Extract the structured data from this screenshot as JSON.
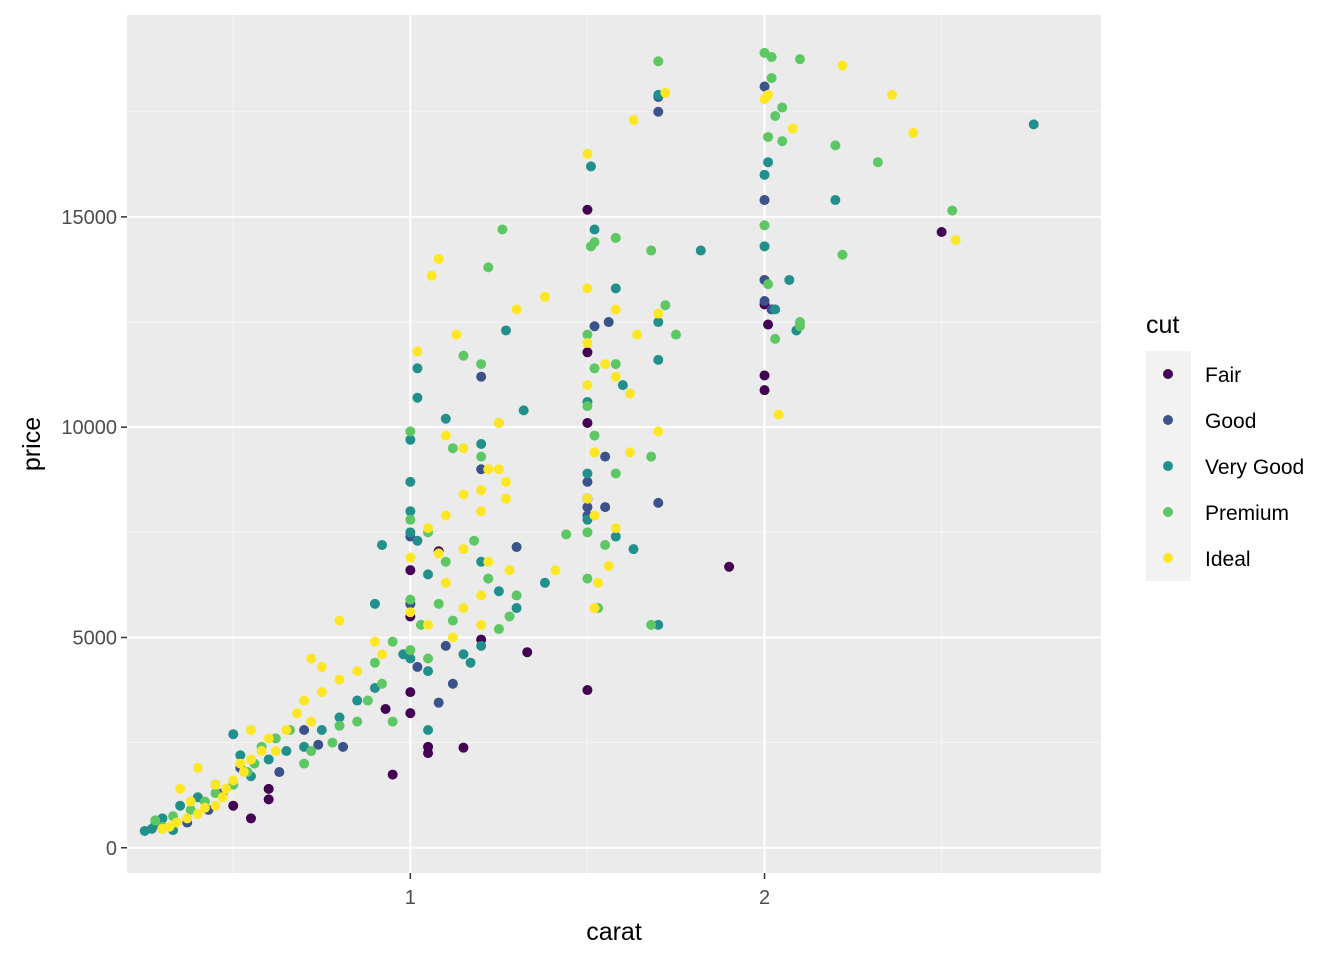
{
  "chart_data": {
    "type": "scatter",
    "title": "",
    "xlabel": "carat",
    "ylabel": "price",
    "xlim": [
      0.2,
      2.95
    ],
    "ylim": [
      -600,
      19800
    ],
    "x_ticks": [
      {
        "value": 1,
        "label": "1"
      },
      {
        "value": 2,
        "label": "2"
      }
    ],
    "y_ticks": [
      {
        "value": 0,
        "label": "0"
      },
      {
        "value": 5000,
        "label": "5000"
      },
      {
        "value": 10000,
        "label": "10000"
      },
      {
        "value": 15000,
        "label": "15000"
      }
    ],
    "grid": true,
    "background": "#EBEBEB",
    "legend": {
      "title": "cut",
      "position": "right",
      "entries": [
        {
          "name": "Fair",
          "color": "#440154"
        },
        {
          "name": "Good",
          "color": "#3B528B"
        },
        {
          "name": "Very Good",
          "color": "#21908C"
        },
        {
          "name": "Premium",
          "color": "#5DC863"
        },
        {
          "name": "Ideal",
          "color": "#FDE725"
        }
      ]
    },
    "series": [
      {
        "name": "Fair",
        "color": "#440154",
        "points": [
          [
            1.5,
            15170
          ],
          [
            1.5,
            11780
          ],
          [
            1.5,
            10100
          ],
          [
            1.5,
            8300
          ],
          [
            1.5,
            3750
          ],
          [
            2.0,
            12920
          ],
          [
            2.01,
            12440
          ],
          [
            2.0,
            11230
          ],
          [
            2.0,
            10880
          ],
          [
            2.5,
            14640
          ],
          [
            1.9,
            6680
          ],
          [
            1.33,
            4650
          ],
          [
            1.15,
            2380
          ],
          [
            1.05,
            2400
          ],
          [
            1.05,
            2250
          ],
          [
            0.95,
            1740
          ],
          [
            0.93,
            3300
          ],
          [
            1.0,
            3200
          ],
          [
            1.0,
            3700
          ],
          [
            1.0,
            5500
          ],
          [
            1.0,
            6600
          ],
          [
            1.08,
            7050
          ],
          [
            1.2,
            4950
          ],
          [
            0.6,
            1400
          ],
          [
            0.6,
            1150
          ],
          [
            0.5,
            1000
          ],
          [
            0.55,
            700
          ]
        ]
      },
      {
        "name": "Good",
        "color": "#3B528B",
        "points": [
          [
            1.7,
            17500
          ],
          [
            1.7,
            17850
          ],
          [
            2.0,
            18100
          ],
          [
            2.0,
            15400
          ],
          [
            2.0,
            13500
          ],
          [
            2.0,
            13000
          ],
          [
            2.02,
            12800
          ],
          [
            1.5,
            8100
          ],
          [
            1.5,
            7900
          ],
          [
            1.5,
            8700
          ],
          [
            1.55,
            8100
          ],
          [
            1.55,
            9300
          ],
          [
            1.52,
            12400
          ],
          [
            1.56,
            12500
          ],
          [
            1.7,
            8200
          ],
          [
            1.2,
            11200
          ],
          [
            1.2,
            9000
          ],
          [
            1.3,
            7150
          ],
          [
            1.0,
            7400
          ],
          [
            1.0,
            5800
          ],
          [
            1.02,
            4300
          ],
          [
            1.1,
            4800
          ],
          [
            1.12,
            3900
          ],
          [
            1.08,
            3450
          ],
          [
            0.81,
            2400
          ],
          [
            0.74,
            2450
          ],
          [
            0.7,
            2800
          ],
          [
            0.63,
            1800
          ],
          [
            0.52,
            1900
          ],
          [
            0.47,
            1300
          ],
          [
            0.43,
            900
          ],
          [
            0.37,
            600
          ]
        ]
      },
      {
        "name": "Very Good",
        "color": "#21908C",
        "points": [
          [
            1.7,
            17900
          ],
          [
            2.76,
            17200
          ],
          [
            2.0,
            16000
          ],
          [
            2.01,
            16300
          ],
          [
            2.0,
            14300
          ],
          [
            2.07,
            13500
          ],
          [
            2.03,
            12800
          ],
          [
            2.09,
            12300
          ],
          [
            2.2,
            15400
          ],
          [
            1.82,
            14200
          ],
          [
            1.51,
            16200
          ],
          [
            1.52,
            14700
          ],
          [
            1.58,
            13300
          ],
          [
            1.7,
            12500
          ],
          [
            1.7,
            11600
          ],
          [
            1.6,
            11000
          ],
          [
            1.5,
            10600
          ],
          [
            1.5,
            8900
          ],
          [
            1.5,
            7800
          ],
          [
            1.58,
            7400
          ],
          [
            1.63,
            7100
          ],
          [
            1.7,
            5300
          ],
          [
            1.02,
            11400
          ],
          [
            1.02,
            10700
          ],
          [
            1.0,
            9700
          ],
          [
            1.1,
            10200
          ],
          [
            1.2,
            9600
          ],
          [
            1.27,
            12300
          ],
          [
            1.32,
            10400
          ],
          [
            1.0,
            8700
          ],
          [
            1.0,
            8000
          ],
          [
            1.0,
            7500
          ],
          [
            1.02,
            7300
          ],
          [
            1.05,
            6500
          ],
          [
            1.2,
            6800
          ],
          [
            1.25,
            6100
          ],
          [
            1.3,
            5700
          ],
          [
            1.38,
            6300
          ],
          [
            1.2,
            4800
          ],
          [
            1.0,
            4500
          ],
          [
            0.92,
            7200
          ],
          [
            0.9,
            5800
          ],
          [
            0.98,
            4600
          ],
          [
            1.05,
            4200
          ],
          [
            1.15,
            4600
          ],
          [
            1.17,
            4400
          ],
          [
            1.05,
            2800
          ],
          [
            0.9,
            3800
          ],
          [
            0.85,
            3500
          ],
          [
            0.8,
            3100
          ],
          [
            0.75,
            2800
          ],
          [
            0.7,
            2400
          ],
          [
            0.65,
            2300
          ],
          [
            0.6,
            2100
          ],
          [
            0.55,
            1700
          ],
          [
            0.52,
            2200
          ],
          [
            0.5,
            2700
          ],
          [
            0.45,
            1500
          ],
          [
            0.4,
            1200
          ],
          [
            0.35,
            1000
          ],
          [
            0.3,
            700
          ],
          [
            0.28,
            550
          ],
          [
            0.25,
            400
          ],
          [
            0.27,
            450
          ],
          [
            0.33,
            420
          ]
        ]
      },
      {
        "name": "Premium",
        "color": "#5DC863",
        "points": [
          [
            1.7,
            18700
          ],
          [
            2.0,
            18900
          ],
          [
            2.02,
            18800
          ],
          [
            2.1,
            18750
          ],
          [
            2.02,
            18300
          ],
          [
            2.05,
            17600
          ],
          [
            2.03,
            17400
          ],
          [
            2.01,
            16900
          ],
          [
            2.05,
            16800
          ],
          [
            2.2,
            16700
          ],
          [
            2.32,
            16300
          ],
          [
            2.53,
            15150
          ],
          [
            2.0,
            14800
          ],
          [
            2.22,
            14100
          ],
          [
            2.01,
            13400
          ],
          [
            2.03,
            12100
          ],
          [
            2.1,
            12500
          ],
          [
            2.1,
            12400
          ],
          [
            1.51,
            14300
          ],
          [
            1.52,
            14400
          ],
          [
            1.58,
            14500
          ],
          [
            1.68,
            14200
          ],
          [
            1.72,
            12900
          ],
          [
            1.75,
            12200
          ],
          [
            1.5,
            12200
          ],
          [
            1.52,
            11400
          ],
          [
            1.58,
            11500
          ],
          [
            1.5,
            10500
          ],
          [
            1.52,
            9800
          ],
          [
            1.58,
            8900
          ],
          [
            1.68,
            9300
          ],
          [
            1.5,
            7500
          ],
          [
            1.55,
            7200
          ],
          [
            1.53,
            5700
          ],
          [
            1.68,
            5300
          ],
          [
            1.44,
            7450
          ],
          [
            1.5,
            6400
          ],
          [
            1.0,
            9900
          ],
          [
            1.15,
            11700
          ],
          [
            1.26,
            14700
          ],
          [
            1.22,
            13800
          ],
          [
            1.2,
            11500
          ],
          [
            1.12,
            9500
          ],
          [
            1.2,
            9300
          ],
          [
            1.25,
            10100
          ],
          [
            1.0,
            7800
          ],
          [
            1.05,
            7500
          ],
          [
            1.18,
            7300
          ],
          [
            1.1,
            6800
          ],
          [
            1.22,
            6400
          ],
          [
            1.28,
            5500
          ],
          [
            1.3,
            6000
          ],
          [
            1.0,
            5900
          ],
          [
            1.03,
            5300
          ],
          [
            1.08,
            5800
          ],
          [
            1.12,
            5400
          ],
          [
            1.25,
            5200
          ],
          [
            1.0,
            4700
          ],
          [
            1.05,
            4500
          ],
          [
            0.95,
            4900
          ],
          [
            0.9,
            4400
          ],
          [
            0.92,
            3900
          ],
          [
            0.95,
            3000
          ],
          [
            0.88,
            3500
          ],
          [
            0.85,
            3000
          ],
          [
            0.8,
            2900
          ],
          [
            0.78,
            2500
          ],
          [
            0.72,
            2300
          ],
          [
            0.7,
            2000
          ],
          [
            0.66,
            2800
          ],
          [
            0.62,
            2600
          ],
          [
            0.58,
            2400
          ],
          [
            0.56,
            2000
          ],
          [
            0.54,
            1800
          ],
          [
            0.5,
            1500
          ],
          [
            0.45,
            1300
          ],
          [
            0.42,
            1100
          ],
          [
            0.38,
            900
          ],
          [
            0.33,
            750
          ],
          [
            0.28,
            650
          ],
          [
            0.3,
            500
          ]
        ]
      },
      {
        "name": "Ideal",
        "color": "#FDE725",
        "points": [
          [
            1.72,
            17950
          ],
          [
            1.63,
            17300
          ],
          [
            2.0,
            17800
          ],
          [
            2.22,
            18600
          ],
          [
            2.36,
            17900
          ],
          [
            2.42,
            17000
          ],
          [
            2.54,
            14450
          ],
          [
            2.08,
            17100
          ],
          [
            2.01,
            17900
          ],
          [
            2.04,
            10300
          ],
          [
            1.5,
            16500
          ],
          [
            1.5,
            13300
          ],
          [
            1.58,
            12800
          ],
          [
            1.64,
            12200
          ],
          [
            1.7,
            12700
          ],
          [
            1.5,
            12000
          ],
          [
            1.55,
            11500
          ],
          [
            1.58,
            11200
          ],
          [
            1.62,
            10800
          ],
          [
            1.5,
            11000
          ],
          [
            1.52,
            9400
          ],
          [
            1.62,
            9400
          ],
          [
            1.7,
            9900
          ],
          [
            1.5,
            8300
          ],
          [
            1.52,
            7900
          ],
          [
            1.58,
            7600
          ],
          [
            1.56,
            6700
          ],
          [
            1.53,
            6300
          ],
          [
            1.52,
            5700
          ],
          [
            1.08,
            14000
          ],
          [
            1.06,
            13600
          ],
          [
            1.38,
            13100
          ],
          [
            1.3,
            12800
          ],
          [
            1.13,
            12200
          ],
          [
            1.02,
            11800
          ],
          [
            1.25,
            10100
          ],
          [
            1.1,
            9800
          ],
          [
            1.15,
            9500
          ],
          [
            1.22,
            9000
          ],
          [
            1.25,
            9000
          ],
          [
            1.27,
            8700
          ],
          [
            1.2,
            8500
          ],
          [
            1.15,
            8400
          ],
          [
            1.27,
            8300
          ],
          [
            1.2,
            8000
          ],
          [
            1.1,
            7900
          ],
          [
            1.05,
            7600
          ],
          [
            1.15,
            7100
          ],
          [
            1.08,
            7000
          ],
          [
            1.0,
            6900
          ],
          [
            1.22,
            6800
          ],
          [
            1.28,
            6600
          ],
          [
            1.41,
            6600
          ],
          [
            1.1,
            6300
          ],
          [
            1.2,
            6000
          ],
          [
            1.15,
            5700
          ],
          [
            1.0,
            5600
          ],
          [
            1.05,
            5300
          ],
          [
            1.12,
            5000
          ],
          [
            1.2,
            5300
          ],
          [
            0.8,
            5400
          ],
          [
            0.9,
            4900
          ],
          [
            0.92,
            4600
          ],
          [
            0.85,
            4200
          ],
          [
            0.72,
            4500
          ],
          [
            0.75,
            4300
          ],
          [
            0.8,
            4000
          ],
          [
            0.75,
            3700
          ],
          [
            0.7,
            3500
          ],
          [
            0.68,
            3200
          ],
          [
            0.72,
            3000
          ],
          [
            0.65,
            2800
          ],
          [
            0.6,
            2600
          ],
          [
            0.62,
            2300
          ],
          [
            0.55,
            2100
          ],
          [
            0.52,
            2000
          ],
          [
            0.53,
            1800
          ],
          [
            0.5,
            1600
          ],
          [
            0.48,
            1400
          ],
          [
            0.47,
            1200
          ],
          [
            0.45,
            1000
          ],
          [
            0.42,
            950
          ],
          [
            0.4,
            800
          ],
          [
            0.37,
            700
          ],
          [
            0.34,
            600
          ],
          [
            0.32,
            500
          ],
          [
            0.3,
            450
          ],
          [
            0.55,
            2800
          ],
          [
            0.58,
            2300
          ],
          [
            0.35,
            1400
          ],
          [
            0.38,
            1100
          ],
          [
            0.45,
            1500
          ],
          [
            0.4,
            1900
          ]
        ]
      }
    ]
  }
}
